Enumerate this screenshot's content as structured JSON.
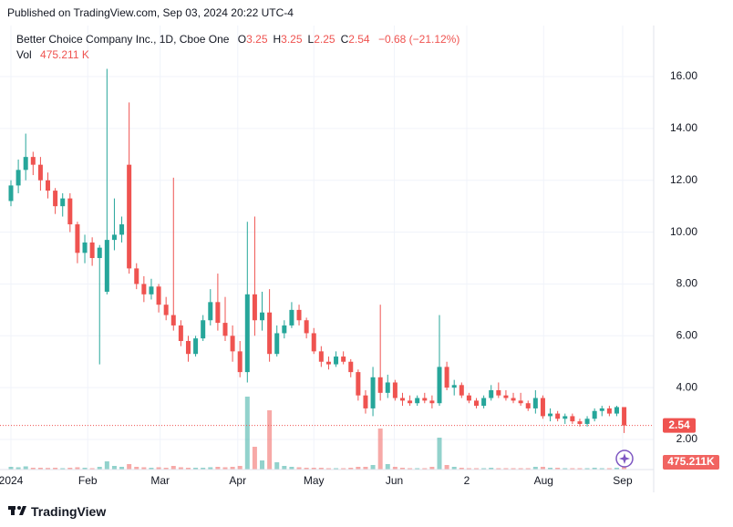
{
  "header": {
    "published": "Published on TradingView.com, Sep 03, 2024 20:22 UTC-4"
  },
  "footer": {
    "brand": "TradingView"
  },
  "chart_data": {
    "type": "candlestick",
    "title": "Better Choice Company Inc., 1D, Cboe One",
    "legend": {
      "ohlc": [
        {
          "label": "O",
          "value": "3.25"
        },
        {
          "label": "H",
          "value": "3.25"
        },
        {
          "label": "L",
          "value": "2.25"
        },
        {
          "label": "C",
          "value": "2.54"
        }
      ],
      "change": "−0.68 (−21.12%)",
      "volume_name": "Vol",
      "volume": "475.211 K"
    },
    "open": [
      11.2,
      11.8,
      12.4,
      12.9,
      12.6,
      12.0,
      11.6,
      11.0,
      11.3,
      10.3,
      9.2,
      9.6,
      9.0,
      7.7,
      9.7,
      9.9,
      12.6,
      8.6,
      8.0,
      7.6,
      7.9,
      7.2,
      6.8,
      6.4,
      5.8,
      5.3,
      5.9,
      6.6,
      7.3,
      6.5,
      6.0,
      5.4,
      4.6,
      7.6,
      6.6,
      6.9,
      5.3,
      6.1,
      6.4,
      7.0,
      6.6,
      6.1,
      5.4,
      5.0,
      4.9,
      5.2,
      5.0,
      4.6,
      3.7,
      3.2,
      4.4,
      3.8,
      4.2,
      3.6,
      3.5,
      3.4,
      3.6,
      3.5,
      3.4,
      4.8,
      4.0,
      4.1,
      3.7,
      3.5,
      3.3,
      3.6,
      3.9,
      3.7,
      3.6,
      3.5,
      3.4,
      3.2,
      3.6,
      2.9,
      3.0,
      2.8,
      2.9,
      2.7,
      2.6,
      2.8,
      3.1,
      3.2,
      3.0,
      3.25
    ],
    "high": [
      12.0,
      12.8,
      13.8,
      13.1,
      12.9,
      12.3,
      11.7,
      11.5,
      11.5,
      10.4,
      9.9,
      9.8,
      9.5,
      16.3,
      11.3,
      10.6,
      15.0,
      8.8,
      8.3,
      8.2,
      8.0,
      7.5,
      12.1,
      6.6,
      6.0,
      6.0,
      6.8,
      7.8,
      8.4,
      7.5,
      6.4,
      5.8,
      10.4,
      10.6,
      7.7,
      7.8,
      6.4,
      6.6,
      7.3,
      7.2,
      6.7,
      6.3,
      5.6,
      5.2,
      5.4,
      5.4,
      5.1,
      4.7,
      3.9,
      4.8,
      7.2,
      4.5,
      4.3,
      3.8,
      3.7,
      3.7,
      3.8,
      3.7,
      6.8,
      5.0,
      4.3,
      4.2,
      3.8,
      3.6,
      3.7,
      4.1,
      4.2,
      3.9,
      3.8,
      3.8,
      3.5,
      3.9,
      3.7,
      3.2,
      3.1,
      3.0,
      3.0,
      2.8,
      2.9,
      3.2,
      3.3,
      3.3,
      3.3,
      3.25
    ],
    "low": [
      11.0,
      11.5,
      12.0,
      12.2,
      11.6,
      11.3,
      10.7,
      10.6,
      10.0,
      8.8,
      8.8,
      8.7,
      4.9,
      7.6,
      9.3,
      9.6,
      8.4,
      7.8,
      7.3,
      7.4,
      6.9,
      6.6,
      6.2,
      5.6,
      5.0,
      5.2,
      5.8,
      6.4,
      6.2,
      5.8,
      5.0,
      4.4,
      4.2,
      6.0,
      6.2,
      5.0,
      5.2,
      5.9,
      6.3,
      6.4,
      5.9,
      5.3,
      4.8,
      4.7,
      4.8,
      4.9,
      4.4,
      3.5,
      3.0,
      2.9,
      3.5,
      3.6,
      3.5,
      3.3,
      3.3,
      3.3,
      3.4,
      3.2,
      3.3,
      3.9,
      3.7,
      3.6,
      3.4,
      3.2,
      3.2,
      3.5,
      3.6,
      3.5,
      3.4,
      3.3,
      3.1,
      3.0,
      2.8,
      2.7,
      2.7,
      2.6,
      2.6,
      2.5,
      2.5,
      2.7,
      2.9,
      2.9,
      2.9,
      2.25
    ],
    "close": [
      11.8,
      12.4,
      12.9,
      12.6,
      12.0,
      11.6,
      11.0,
      11.3,
      10.3,
      9.2,
      9.6,
      9.0,
      9.4,
      9.7,
      9.9,
      10.3,
      8.6,
      8.0,
      7.6,
      7.9,
      7.2,
      6.8,
      6.4,
      5.8,
      5.3,
      5.9,
      6.6,
      7.3,
      6.5,
      6.0,
      5.4,
      4.6,
      7.6,
      6.6,
      6.9,
      5.3,
      6.1,
      6.4,
      7.0,
      6.6,
      6.1,
      5.4,
      5.0,
      4.9,
      5.2,
      5.0,
      4.6,
      3.7,
      3.2,
      4.4,
      3.8,
      4.2,
      3.6,
      3.5,
      3.4,
      3.6,
      3.5,
      3.4,
      4.8,
      4.0,
      4.1,
      3.7,
      3.5,
      3.3,
      3.6,
      3.9,
      3.7,
      3.6,
      3.5,
      3.4,
      3.2,
      3.6,
      2.9,
      3.0,
      2.8,
      2.9,
      2.7,
      2.6,
      2.8,
      3.1,
      3.2,
      3.0,
      3.25,
      2.54
    ],
    "volume": [
      300000,
      250000,
      350000,
      200000,
      200000,
      180000,
      200000,
      150000,
      200000,
      250000,
      200000,
      150000,
      300000,
      900000,
      400000,
      300000,
      600000,
      300000,
      250000,
      200000,
      250000,
      200000,
      400000,
      250000,
      200000,
      200000,
      200000,
      250000,
      300000,
      250000,
      300000,
      400000,
      8000000,
      2500000,
      1000000,
      6500000,
      800000,
      400000,
      300000,
      250000,
      200000,
      200000,
      200000,
      150000,
      150000,
      150000,
      200000,
      300000,
      300000,
      500000,
      4500000,
      600000,
      300000,
      200000,
      150000,
      150000,
      150000,
      300000,
      3500000,
      500000,
      300000,
      200000,
      150000,
      150000,
      150000,
      200000,
      150000,
      150000,
      150000,
      150000,
      150000,
      300000,
      300000,
      200000,
      200000,
      150000,
      150000,
      150000,
      150000,
      200000,
      150000,
      150000,
      200000,
      475211
    ],
    "last_volume": {
      "value": 475211,
      "label": "475.211K"
    },
    "up_color": "#26a69a",
    "down_color": "#ef5350",
    "xlim": [
      -1.48,
      87
    ],
    "xticks": [
      {
        "value": 0,
        "label": "2024"
      },
      {
        "value": 10.4,
        "label": "Feb"
      },
      {
        "value": 20.2,
        "label": "Mar"
      },
      {
        "value": 30.7,
        "label": "Apr"
      },
      {
        "value": 41,
        "label": "May"
      },
      {
        "value": 51.9,
        "label": "Jun"
      },
      {
        "value": 61.7,
        "label": "2"
      },
      {
        "value": 72.1,
        "label": "Aug"
      },
      {
        "value": 82.8,
        "label": "Sep"
      }
    ],
    "ylim": [
      0.84,
      17.97
    ],
    "yticks": [
      {
        "value": 2,
        "label": "2.00"
      },
      {
        "value": 4,
        "label": "4.00"
      },
      {
        "value": 6,
        "label": "6.00"
      },
      {
        "value": 8,
        "label": "8.00"
      },
      {
        "value": 10,
        "label": "10.00"
      },
      {
        "value": 12,
        "label": "12.00"
      },
      {
        "value": 14,
        "label": "14.00"
      },
      {
        "value": 16,
        "label": "16.00"
      }
    ],
    "vlim": [
      0,
      24000000
    ],
    "grid": true
  }
}
